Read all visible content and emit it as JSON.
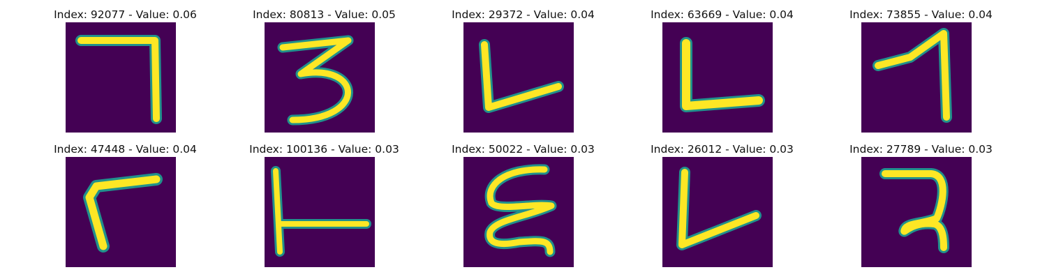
{
  "colors": {
    "background": "#440154",
    "stroke_core": "#fde725",
    "stroke_edge": "#21918c"
  },
  "items": [
    {
      "index": "92077",
      "value": "0.06",
      "title": "Index: 92077 - Value: 0.06",
      "glyph": "seven-icon"
    },
    {
      "index": "80813",
      "value": "0.05",
      "title": "Index: 80813 - Value: 0.05",
      "glyph": "three-icon"
    },
    {
      "index": "29372",
      "value": "0.04",
      "title": "Index: 29372 - Value: 0.04",
      "glyph": "l-shape-icon"
    },
    {
      "index": "63669",
      "value": "0.04",
      "title": "Index: 63669 - Value: 0.04",
      "glyph": "l-shape-icon"
    },
    {
      "index": "73855",
      "value": "0.04",
      "title": "Index: 73855 - Value: 0.04",
      "glyph": "one-icon"
    },
    {
      "index": "47448",
      "value": "0.04",
      "title": "Index: 47448 - Value: 0.04",
      "glyph": "r-shape-icon"
    },
    {
      "index": "100136",
      "value": "0.03",
      "title": "Index: 100136 - Value: 0.03",
      "glyph": "t-shape-icon"
    },
    {
      "index": "50022",
      "value": "0.03",
      "title": "Index: 50022 - Value: 0.03",
      "glyph": "rotated-m-icon"
    },
    {
      "index": "26012",
      "value": "0.03",
      "title": "Index: 26012 - Value: 0.03",
      "glyph": "l-shape-icon"
    },
    {
      "index": "27789",
      "value": "0.03",
      "title": "Index: 27789 - Value: 0.03",
      "glyph": "two-icon"
    }
  ]
}
